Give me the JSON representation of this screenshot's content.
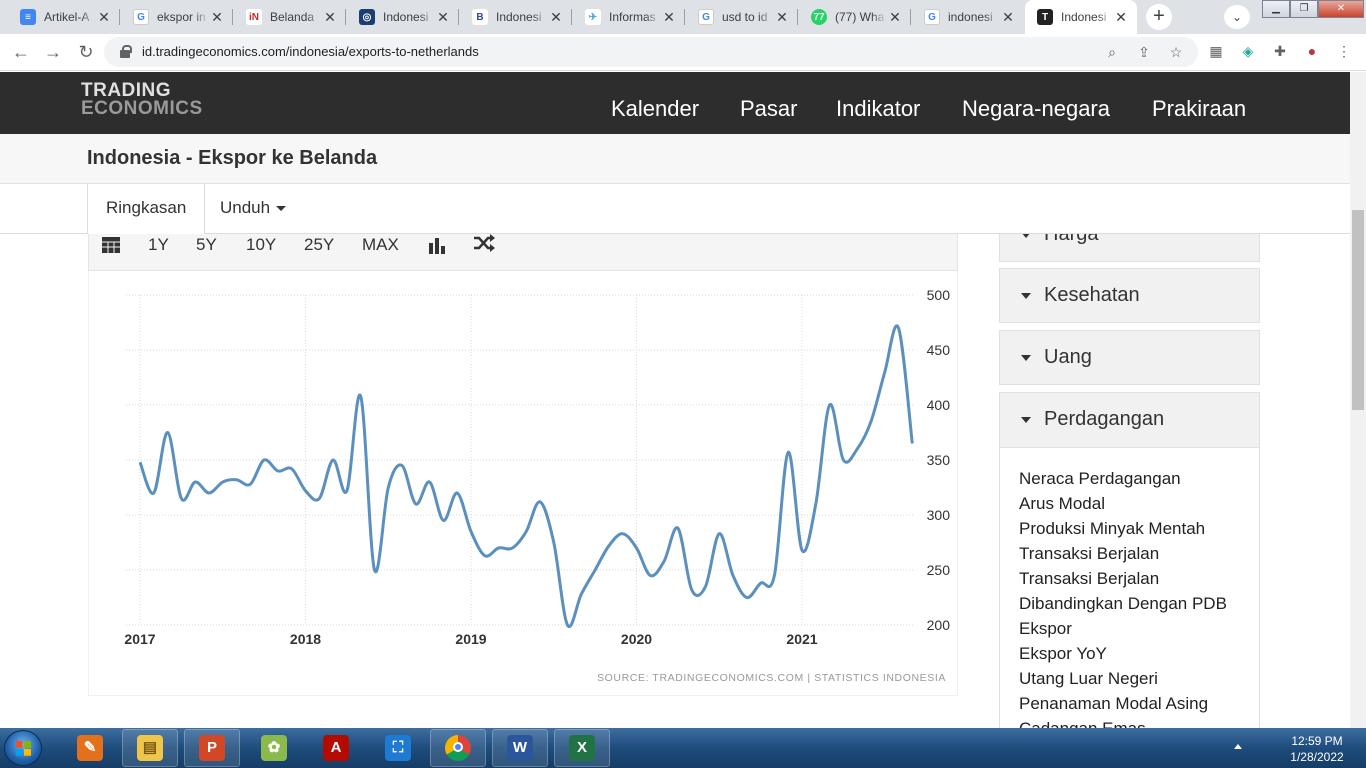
{
  "browser": {
    "tabs": [
      {
        "title": "Artikel-A",
        "icon": "docs-icon",
        "color": "#4285f4"
      },
      {
        "title": "ekspor in",
        "icon": "google-icon",
        "color": "#4285f4"
      },
      {
        "title": "Belanda",
        "icon": "idn-icon",
        "color": "#c62828"
      },
      {
        "title": "Indonesi",
        "icon": "bps-icon",
        "color": "#1a3e72"
      },
      {
        "title": "Indonesi",
        "icon": "b-icon",
        "color": "#2b4aa0"
      },
      {
        "title": "Informas",
        "icon": "bird-icon",
        "color": "#4aa3df"
      },
      {
        "title": "usd to id",
        "icon": "google-icon",
        "color": "#4285f4"
      },
      {
        "title": "(77) Wha",
        "icon": "whatsapp-icon",
        "color": "#25d366"
      },
      {
        "title": "indonesi",
        "icon": "google-icon",
        "color": "#4285f4"
      },
      {
        "title": "Indonesi",
        "icon": "tradingeconomics-icon",
        "color": "#222222"
      }
    ],
    "url": "id.tradingeconomics.com/indonesia/exports-to-netherlands"
  },
  "site": {
    "logo_line1": "TRADING",
    "logo_line2": "ECONOMICS",
    "menu": [
      "Kalender",
      "Pasar",
      "Indikator",
      "Negara-negara",
      "Prakiraan"
    ],
    "page_title": "Indonesia - Ekspor ke Belanda",
    "subtabs": {
      "summary": "Ringkasan",
      "download": "Unduh"
    }
  },
  "chart_toolbar": {
    "ranges": [
      "1Y",
      "5Y",
      "10Y",
      "25Y",
      "MAX"
    ]
  },
  "chart_data": {
    "type": "line",
    "x_ticks": [
      "2017",
      "2018",
      "2019",
      "2020",
      "2021"
    ],
    "y_ticks": [
      "500",
      "450",
      "400",
      "350",
      "300",
      "250",
      "200"
    ],
    "ylim": [
      200,
      500
    ],
    "grid": true,
    "series": [
      {
        "color": "#5b8fbd",
        "points": [
          [
            "2017-01",
            348
          ],
          [
            "2017-02",
            320
          ],
          [
            "2017-03",
            375
          ],
          [
            "2017-04",
            315
          ],
          [
            "2017-05",
            330
          ],
          [
            "2017-06",
            320
          ],
          [
            "2017-07",
            330
          ],
          [
            "2017-08",
            332
          ],
          [
            "2017-09",
            328
          ],
          [
            "2017-10",
            350
          ],
          [
            "2017-11",
            340
          ],
          [
            "2017-12",
            342
          ],
          [
            "2018-01",
            322
          ],
          [
            "2018-02",
            315
          ],
          [
            "2018-03",
            350
          ],
          [
            "2018-04",
            322
          ],
          [
            "2018-05",
            408
          ],
          [
            "2018-06",
            250
          ],
          [
            "2018-07",
            325
          ],
          [
            "2018-08",
            345
          ],
          [
            "2018-09",
            310
          ],
          [
            "2018-10",
            330
          ],
          [
            "2018-11",
            295
          ],
          [
            "2018-12",
            320
          ],
          [
            "2019-01",
            285
          ],
          [
            "2019-02",
            263
          ],
          [
            "2019-03",
            270
          ],
          [
            "2019-04",
            270
          ],
          [
            "2019-05",
            285
          ],
          [
            "2019-06",
            312
          ],
          [
            "2019-07",
            275
          ],
          [
            "2019-08",
            200
          ],
          [
            "2019-09",
            228
          ],
          [
            "2019-10",
            250
          ],
          [
            "2019-11",
            272
          ],
          [
            "2019-12",
            283
          ],
          [
            "2020-01",
            270
          ],
          [
            "2020-02",
            245
          ],
          [
            "2020-03",
            258
          ],
          [
            "2020-04",
            288
          ],
          [
            "2020-05",
            232
          ],
          [
            "2020-06",
            235
          ],
          [
            "2020-07",
            283
          ],
          [
            "2020-08",
            245
          ],
          [
            "2020-09",
            225
          ],
          [
            "2020-10",
            238
          ],
          [
            "2020-11",
            245
          ],
          [
            "2020-12",
            357
          ],
          [
            "2021-01",
            268
          ],
          [
            "2021-02",
            310
          ],
          [
            "2021-03",
            400
          ],
          [
            "2021-04",
            350
          ],
          [
            "2021-05",
            360
          ],
          [
            "2021-06",
            385
          ],
          [
            "2021-07",
            430
          ],
          [
            "2021-08",
            470
          ],
          [
            "2021-09",
            365
          ]
        ]
      }
    ],
    "source": "SOURCE: TRADINGECONOMICS.COM  |  STATISTICS INDONESIA"
  },
  "sidebar": {
    "sections": [
      "Harga",
      "Kesehatan",
      "Uang",
      "Perdagangan"
    ],
    "trade_links": [
      "Neraca Perdagangan",
      "Arus Modal",
      "Produksi Minyak Mentah",
      "Transaksi Berjalan",
      "Transaksi Berjalan",
      "Dibandingkan Dengan PDB",
      "Ekspor",
      "Ekspor YoY",
      "Utang Luar Negeri",
      "Penanaman Modal Asing",
      "Cadangan Emas"
    ]
  },
  "taskbar": {
    "time": "12:59 PM",
    "date": "1/28/2022"
  }
}
